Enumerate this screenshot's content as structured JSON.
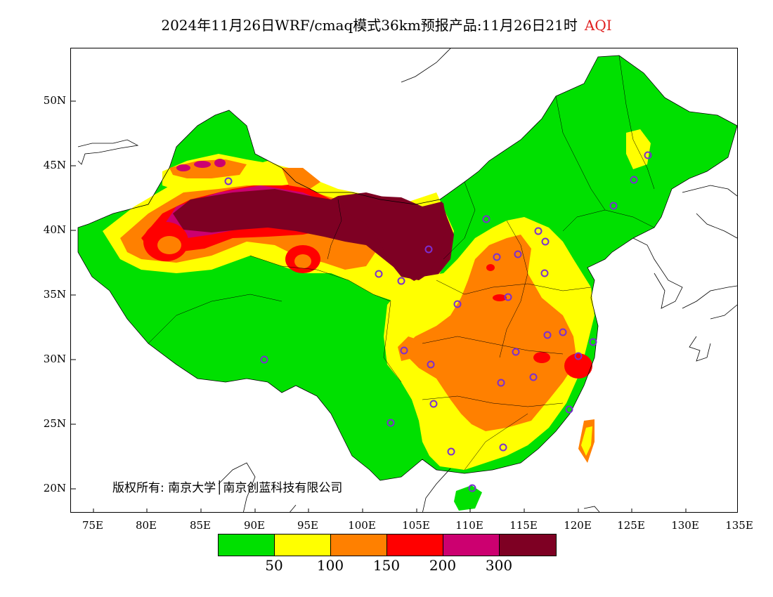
{
  "title": {
    "prefix": "2024年11月26日WRF/cmaq模式36km预报产品:11月26日21时",
    "variable": "AQI",
    "variable_color": "#e02020"
  },
  "map": {
    "lon_ticks": [
      "75E",
      "80E",
      "85E",
      "90E",
      "95E",
      "100E",
      "105E",
      "110E",
      "115E",
      "120E",
      "125E",
      "130E",
      "135E"
    ],
    "lat_ticks": [
      "50N",
      "45N",
      "40N",
      "35N",
      "30N",
      "25N",
      "20N"
    ],
    "copyright": "版权所有: 南京大学│南京创蓝科技有限公司",
    "station_marker_color": "#7b2fd0"
  },
  "legend": {
    "colors": [
      "#00e000",
      "#ffff00",
      "#ff8000",
      "#ff0000",
      "#cc0070",
      "#7e0023"
    ],
    "labels": [
      "50",
      "100",
      "150",
      "200",
      "300"
    ]
  }
}
